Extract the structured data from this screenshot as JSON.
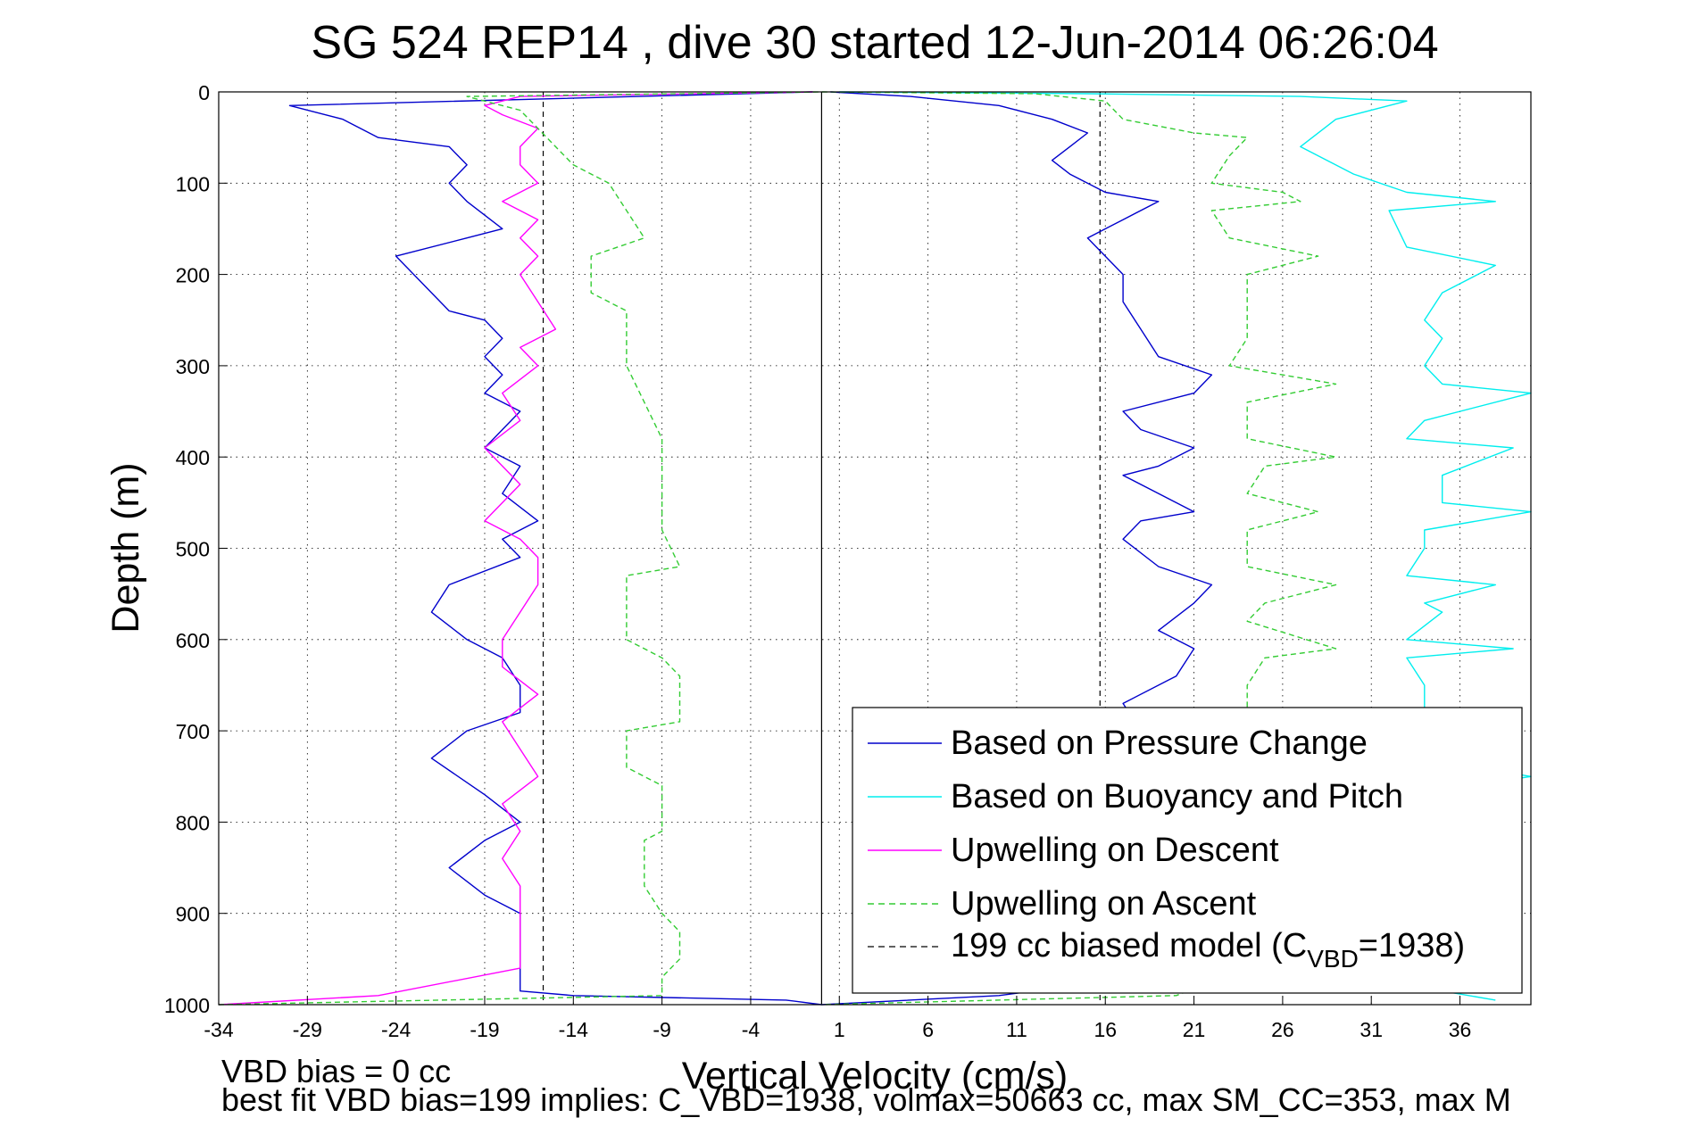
{
  "chart_data": {
    "type": "line",
    "title": "SG 524   REP14  , dive 30 started 12-Jun-2014 06:26:04",
    "xlabel": "Vertical Velocity (cm/s)",
    "ylabel": "Depth (m)",
    "xlim": [
      -34,
      40
    ],
    "ylim": [
      0,
      1000
    ],
    "y_reversed": true,
    "grid": true,
    "x_ticks": [
      -34,
      -29,
      -24,
      -19,
      -14,
      -9,
      -4,
      1,
      6,
      11,
      16,
      21,
      26,
      31,
      36
    ],
    "y_ticks": [
      0,
      100,
      200,
      300,
      400,
      500,
      600,
      700,
      800,
      900,
      1000
    ],
    "reference_lines": [
      {
        "name": "zero",
        "x": 0,
        "color": "#000000",
        "style": "solid"
      },
      {
        "name": "model_down",
        "x": -15.7,
        "color": "#000000",
        "style": "dashed"
      },
      {
        "name": "model_up",
        "x": 15.7,
        "color": "#000000",
        "style": "dashed"
      }
    ],
    "series": [
      {
        "name": "Based on Pressure Change",
        "color": "#0000cc",
        "style": "solid",
        "key": "pressure",
        "points": [
          [
            -0.5,
            0
          ],
          [
            -30,
            15
          ],
          [
            -27,
            30
          ],
          [
            -25,
            50
          ],
          [
            -21,
            60
          ],
          [
            -20,
            80
          ],
          [
            -21,
            100
          ],
          [
            -20,
            120
          ],
          [
            -18,
            150
          ],
          [
            -20,
            160
          ],
          [
            -24,
            180
          ],
          [
            -23,
            200
          ],
          [
            -22,
            220
          ],
          [
            -21,
            240
          ],
          [
            -19,
            250
          ],
          [
            -18,
            270
          ],
          [
            -19,
            290
          ],
          [
            -18,
            310
          ],
          [
            -19,
            330
          ],
          [
            -17,
            350
          ],
          [
            -18,
            370
          ],
          [
            -19,
            390
          ],
          [
            -17,
            410
          ],
          [
            -18,
            440
          ],
          [
            -16,
            470
          ],
          [
            -18,
            490
          ],
          [
            -17,
            510
          ],
          [
            -21,
            540
          ],
          [
            -22,
            570
          ],
          [
            -20,
            600
          ],
          [
            -18,
            620
          ],
          [
            -17,
            650
          ],
          [
            -17,
            680
          ],
          [
            -20,
            700
          ],
          [
            -22,
            730
          ],
          [
            -19,
            770
          ],
          [
            -17,
            800
          ],
          [
            -19,
            820
          ],
          [
            -21,
            850
          ],
          [
            -19,
            880
          ],
          [
            -17,
            900
          ],
          [
            -17,
            930
          ],
          [
            -17,
            960
          ],
          [
            -17,
            985
          ],
          [
            -14,
            990
          ],
          [
            -2,
            995
          ],
          [
            0,
            1000
          ],
          [
            10,
            990
          ],
          [
            14,
            980
          ],
          [
            16,
            960
          ],
          [
            17,
            930
          ],
          [
            17,
            900
          ],
          [
            18,
            870
          ],
          [
            17,
            840
          ],
          [
            18,
            800
          ],
          [
            19,
            780
          ],
          [
            21,
            760
          ],
          [
            19,
            740
          ],
          [
            18,
            700
          ],
          [
            17,
            670
          ],
          [
            20,
            640
          ],
          [
            21,
            610
          ],
          [
            19,
            590
          ],
          [
            21,
            560
          ],
          [
            22,
            540
          ],
          [
            19,
            520
          ],
          [
            17,
            490
          ],
          [
            18,
            470
          ],
          [
            21,
            460
          ],
          [
            19,
            440
          ],
          [
            17,
            420
          ],
          [
            19,
            410
          ],
          [
            21,
            390
          ],
          [
            18,
            370
          ],
          [
            17,
            350
          ],
          [
            21,
            330
          ],
          [
            22,
            310
          ],
          [
            19,
            290
          ],
          [
            18,
            260
          ],
          [
            17,
            230
          ],
          [
            17,
            200
          ],
          [
            16,
            180
          ],
          [
            15,
            160
          ],
          [
            17,
            140
          ],
          [
            19,
            120
          ],
          [
            16,
            110
          ],
          [
            14,
            90
          ],
          [
            13,
            75
          ],
          [
            14,
            60
          ],
          [
            15,
            45
          ],
          [
            13,
            30
          ],
          [
            10,
            15
          ],
          [
            5,
            5
          ],
          [
            0.5,
            0
          ]
        ]
      },
      {
        "name": "Based on Buoyancy and Pitch",
        "color": "#00eeee",
        "style": "solid",
        "key": "buoyancy",
        "points": [
          [
            38,
            995
          ],
          [
            35,
            985
          ],
          [
            34,
            960
          ],
          [
            34,
            930
          ],
          [
            35,
            900
          ],
          [
            34,
            870
          ],
          [
            34,
            840
          ],
          [
            33,
            810
          ],
          [
            33,
            770
          ],
          [
            40,
            750
          ],
          [
            34,
            730
          ],
          [
            34,
            700
          ],
          [
            34,
            680
          ],
          [
            34,
            650
          ],
          [
            33,
            620
          ],
          [
            39,
            610
          ],
          [
            33,
            600
          ],
          [
            35,
            570
          ],
          [
            34,
            560
          ],
          [
            38,
            540
          ],
          [
            33,
            530
          ],
          [
            34,
            500
          ],
          [
            34,
            480
          ],
          [
            40,
            460
          ],
          [
            35,
            450
          ],
          [
            35,
            420
          ],
          [
            39,
            390
          ],
          [
            33,
            380
          ],
          [
            34,
            360
          ],
          [
            40,
            330
          ],
          [
            35,
            320
          ],
          [
            34,
            300
          ],
          [
            35,
            270
          ],
          [
            34,
            250
          ],
          [
            35,
            220
          ],
          [
            38,
            190
          ],
          [
            33,
            170
          ],
          [
            32,
            130
          ],
          [
            38,
            120
          ],
          [
            33,
            110
          ],
          [
            30,
            90
          ],
          [
            27,
            60
          ],
          [
            29,
            30
          ],
          [
            33,
            10
          ],
          [
            27,
            5
          ],
          [
            15,
            2
          ],
          [
            1,
            0
          ]
        ]
      },
      {
        "name": "Upwelling on Descent",
        "color": "#ff00ff",
        "style": "solid",
        "key": "descent",
        "points": [
          [
            -0.5,
            0
          ],
          [
            -17,
            5
          ],
          [
            -19,
            15
          ],
          [
            -18,
            25
          ],
          [
            -16,
            40
          ],
          [
            -17,
            60
          ],
          [
            -17,
            80
          ],
          [
            -16,
            100
          ],
          [
            -18,
            120
          ],
          [
            -16,
            140
          ],
          [
            -17,
            160
          ],
          [
            -16,
            180
          ],
          [
            -17,
            200
          ],
          [
            -16,
            230
          ],
          [
            -15,
            260
          ],
          [
            -17,
            280
          ],
          [
            -16,
            300
          ],
          [
            -18,
            330
          ],
          [
            -17,
            360
          ],
          [
            -19,
            390
          ],
          [
            -18,
            410
          ],
          [
            -17,
            430
          ],
          [
            -18,
            450
          ],
          [
            -19,
            470
          ],
          [
            -17,
            490
          ],
          [
            -16,
            510
          ],
          [
            -16,
            540
          ],
          [
            -17,
            570
          ],
          [
            -18,
            600
          ],
          [
            -18,
            630
          ],
          [
            -16,
            660
          ],
          [
            -18,
            690
          ],
          [
            -17,
            720
          ],
          [
            -16,
            750
          ],
          [
            -18,
            780
          ],
          [
            -17,
            810
          ],
          [
            -18,
            840
          ],
          [
            -17,
            870
          ],
          [
            -17,
            900
          ],
          [
            -17,
            930
          ],
          [
            -17,
            960
          ],
          [
            -25,
            990
          ],
          [
            -34,
            1000
          ]
        ]
      },
      {
        "name": "Upwelling on Ascent",
        "color": "#33cc33",
        "style": "dashed",
        "key": "ascent",
        "points": [
          [
            -34,
            1000
          ],
          [
            -9,
            990
          ],
          [
            -9,
            970
          ],
          [
            -8,
            950
          ],
          [
            -8,
            920
          ],
          [
            -9,
            900
          ],
          [
            -10,
            870
          ],
          [
            -10,
            820
          ],
          [
            -9,
            810
          ],
          [
            -9,
            780
          ],
          [
            -9,
            760
          ],
          [
            -11,
            740
          ],
          [
            -11,
            700
          ],
          [
            -8,
            690
          ],
          [
            -8,
            660
          ],
          [
            -8,
            640
          ],
          [
            -9,
            620
          ],
          [
            -11,
            600
          ],
          [
            -11,
            530
          ],
          [
            -8,
            520
          ],
          [
            -9,
            480
          ],
          [
            -9,
            450
          ],
          [
            -9,
            420
          ],
          [
            -9,
            380
          ],
          [
            -10,
            340
          ],
          [
            -11,
            300
          ],
          [
            -11,
            260
          ],
          [
            -11,
            240
          ],
          [
            -13,
            220
          ],
          [
            -13,
            180
          ],
          [
            -10,
            160
          ],
          [
            -11,
            130
          ],
          [
            -12,
            100
          ],
          [
            -14,
            80
          ],
          [
            -15,
            60
          ],
          [
            -16,
            40
          ],
          [
            -17,
            20
          ],
          [
            -20,
            5
          ],
          [
            0,
            0
          ],
          [
            12,
            2
          ],
          [
            16,
            10
          ],
          [
            17,
            30
          ],
          [
            21,
            45
          ],
          [
            24,
            50
          ],
          [
            23,
            70
          ],
          [
            22,
            100
          ],
          [
            26,
            110
          ],
          [
            27,
            120
          ],
          [
            22,
            130
          ],
          [
            23,
            160
          ],
          [
            28,
            180
          ],
          [
            24,
            200
          ],
          [
            24,
            240
          ],
          [
            24,
            270
          ],
          [
            23,
            300
          ],
          [
            29,
            320
          ],
          [
            24,
            340
          ],
          [
            24,
            380
          ],
          [
            29,
            400
          ],
          [
            25,
            410
          ],
          [
            24,
            440
          ],
          [
            28,
            460
          ],
          [
            24,
            480
          ],
          [
            24,
            520
          ],
          [
            29,
            540
          ],
          [
            25,
            560
          ],
          [
            24,
            580
          ],
          [
            29,
            610
          ],
          [
            25,
            620
          ],
          [
            24,
            650
          ],
          [
            24,
            700
          ],
          [
            25,
            750
          ],
          [
            25,
            800
          ],
          [
            25,
            850
          ],
          [
            26,
            900
          ],
          [
            24,
            960
          ],
          [
            20,
            990
          ],
          [
            0,
            1000
          ]
        ]
      }
    ],
    "legend": {
      "placement": "bottom-right",
      "entries": [
        {
          "label": "Based on Pressure Change",
          "color": "#0000cc",
          "style": "solid"
        },
        {
          "label": "Based on Buoyancy and Pitch",
          "color": "#00eeee",
          "style": "solid"
        },
        {
          "label": "Upwelling on Descent",
          "color": "#ff00ff",
          "style": "solid"
        },
        {
          "label": "Upwelling on Ascent",
          "color": "#33cc33",
          "style": "dashed"
        },
        {
          "label_main": "199 cc biased model (C",
          "label_sub": "VBD",
          "label_tail": "=1938)",
          "color": "#000000",
          "style": "dashed"
        }
      ]
    },
    "annotations": {
      "line1": "VBD bias = 0 cc",
      "line2": "best fit VBD bias=199 implies: C_VBD=1938, volmax=50663 cc, max SM_CC=353, max M"
    }
  }
}
